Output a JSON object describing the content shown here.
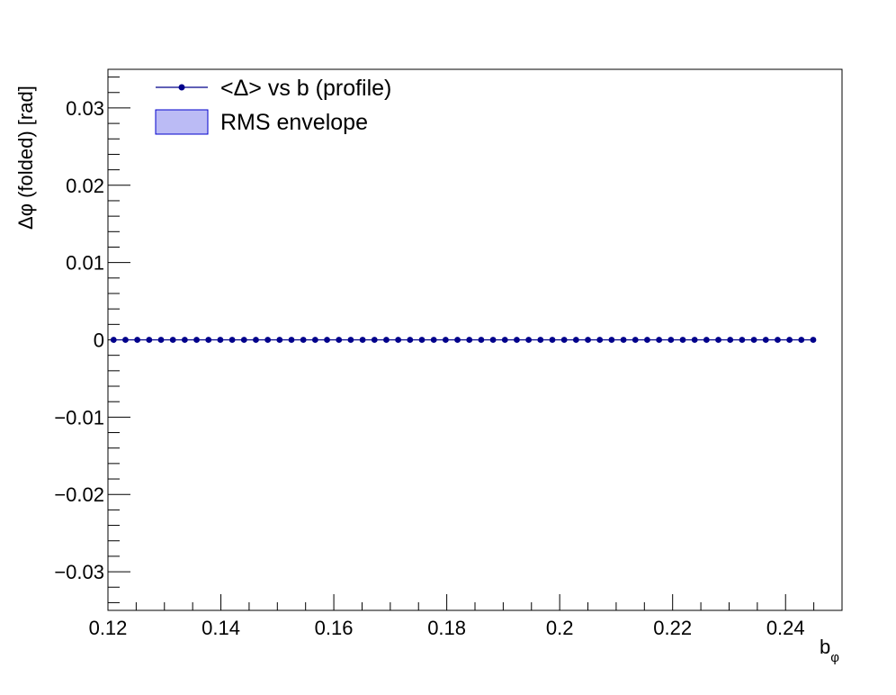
{
  "chart_data": {
    "type": "scatter",
    "title": "",
    "xlabel": "b",
    "xlabel_sub": "φ",
    "ylabel": "Δφ (folded) [rad]",
    "xlim": [
      0.12,
      0.25
    ],
    "ylim": [
      -0.035,
      0.035
    ],
    "x_ticks": [
      0.12,
      0.14,
      0.16,
      0.18,
      0.2,
      0.22,
      0.24
    ],
    "x_tick_labels": [
      "0.12",
      "0.14",
      "0.16",
      "0.18",
      "0.2",
      "0.22",
      "0.24"
    ],
    "y_ticks": [
      0.03,
      0.02,
      0.01,
      0,
      -0.01,
      -0.02,
      -0.03
    ],
    "y_tick_labels": [
      "0.03",
      "0.02",
      "0.01",
      "0",
      "−0.01",
      "−0.02",
      "−0.03"
    ],
    "grid": false,
    "legend_position": "top-left",
    "legend": [
      {
        "label": "<Δ> vs b  (profile)",
        "kind": "marker-line",
        "color": "#00008b"
      },
      {
        "label": "RMS envelope",
        "kind": "fill",
        "color": "#0000cc",
        "fill": "#bbbbf5"
      }
    ],
    "series": [
      {
        "name": "<Δ> vs b  (profile)",
        "color": "#00008b",
        "x_start": 0.121,
        "x_step": 0.0021,
        "count": 60,
        "y": 0
      }
    ]
  }
}
